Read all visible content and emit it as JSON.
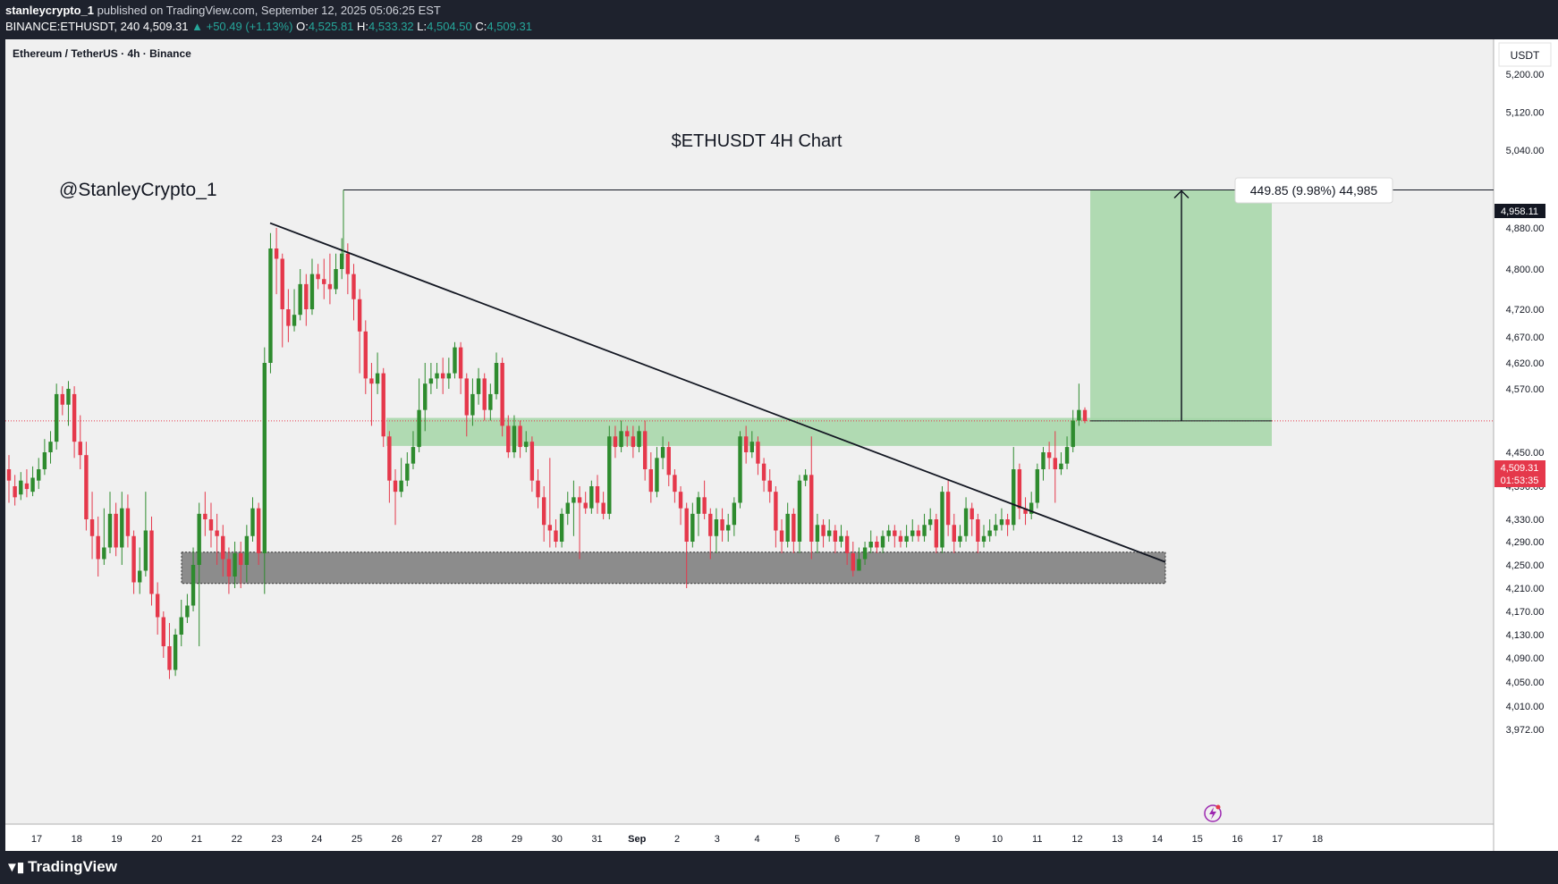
{
  "header": {
    "author": "stanleycrypto_1",
    "published": " published on TradingView.com, September 12, 2025 05:06:25 EST",
    "symbol": "BINANCE:ETHUSDT, 240",
    "price": "4,509.31",
    "change": "▲ +50.49 (+1.13%)",
    "o_label": "O:",
    "o_val": "4,525.81",
    "h_label": "H:",
    "h_val": "4,533.32",
    "l_label": "L:",
    "l_val": "4,504.50",
    "c_label": "C:",
    "c_val": "4,509.31"
  },
  "footer": {
    "brand": "TradingView"
  },
  "colors": {
    "up": "#2e8b2e",
    "down": "#e5384b",
    "zone": "#a5d6a7",
    "support": "#8c8c8c",
    "bg": "#f0f0f0"
  },
  "chart_data": {
    "type": "candlestick",
    "pair_label": "Ethereum / TetherUS · 4h · Binance",
    "title": "$ETHUSDT 4H Chart",
    "watermark": "@StanleyCrypto_1",
    "currency": "USDT",
    "ylim": [
      3945,
      5260
    ],
    "y_ticks": [
      "5,200.00",
      "5,120.00",
      "5,040.00",
      "4,880.00",
      "4,800.00",
      "4,720.00",
      "4,670.00",
      "4,620.00",
      "4,570.00",
      "4,450.00",
      "4,390.00",
      "4,330.00",
      "4,290.00",
      "4,250.00",
      "4,210.00",
      "4,170.00",
      "4,130.00",
      "4,090.00",
      "4,050.00",
      "4,010.00",
      "3,972.00"
    ],
    "x_ticks": [
      "17",
      "18",
      "19",
      "20",
      "21",
      "22",
      "23",
      "24",
      "25",
      "26",
      "27",
      "28",
      "29",
      "30",
      "31",
      "Sep",
      "2",
      "3",
      "4",
      "5",
      "6",
      "7",
      "8",
      "9",
      "10",
      "11",
      "12",
      "13",
      "14",
      "15",
      "16",
      "17",
      "18"
    ],
    "current_price": "4,509.31",
    "countdown": "01:53:35",
    "target_price": "4,958.11",
    "measure_label": "449.85 (9.98%) 44,985",
    "candles": [
      [
        4420,
        4400,
        4445,
        4360
      ],
      [
        4390,
        4370,
        4410,
        4355
      ],
      [
        4375,
        4400,
        4415,
        4365
      ],
      [
        4395,
        4385,
        4420,
        4370
      ],
      [
        4380,
        4405,
        4425,
        4372
      ],
      [
        4400,
        4420,
        4440,
        4385
      ],
      [
        4420,
        4450,
        4475,
        4410
      ],
      [
        4450,
        4470,
        4490,
        4430
      ],
      [
        4470,
        4560,
        4580,
        4455
      ],
      [
        4560,
        4540,
        4575,
        4520
      ],
      [
        4540,
        4570,
        4585,
        4500
      ],
      [
        4560,
        4470,
        4575,
        4440
      ],
      [
        4470,
        4445,
        4520,
        4420
      ],
      [
        4445,
        4330,
        4470,
        4310
      ],
      [
        4330,
        4300,
        4380,
        4260
      ],
      [
        4300,
        4260,
        4335,
        4230
      ],
      [
        4260,
        4280,
        4350,
        4250
      ],
      [
        4280,
        4340,
        4380,
        4270
      ],
      [
        4340,
        4280,
        4360,
        4265
      ],
      [
        4280,
        4350,
        4380,
        4250
      ],
      [
        4350,
        4300,
        4375,
        4280
      ],
      [
        4300,
        4220,
        4310,
        4200
      ],
      [
        4220,
        4240,
        4280,
        4200
      ],
      [
        4240,
        4310,
        4380,
        4230
      ],
      [
        4310,
        4200,
        4335,
        4180
      ],
      [
        4200,
        4160,
        4220,
        4130
      ],
      [
        4160,
        4110,
        4170,
        4090
      ],
      [
        4110,
        4070,
        4150,
        4055
      ],
      [
        4070,
        4130,
        4140,
        4060
      ],
      [
        4130,
        4160,
        4190,
        4110
      ],
      [
        4160,
        4180,
        4200,
        4150
      ],
      [
        4180,
        4250,
        4280,
        4170
      ],
      [
        4250,
        4340,
        4360,
        4110
      ],
      [
        4340,
        4330,
        4380,
        4300
      ],
      [
        4330,
        4310,
        4360,
        4280
      ],
      [
        4310,
        4300,
        4340,
        4250
      ],
      [
        4300,
        4260,
        4320,
        4230
      ],
      [
        4260,
        4230,
        4280,
        4200
      ],
      [
        4230,
        4270,
        4290,
        4210
      ],
      [
        4270,
        4250,
        4290,
        4210
      ],
      [
        4250,
        4300,
        4320,
        4220
      ],
      [
        4300,
        4350,
        4370,
        4290
      ],
      [
        4350,
        4270,
        4360,
        4250
      ],
      [
        4270,
        4620,
        4650,
        4200
      ],
      [
        4620,
        4840,
        4870,
        4600
      ],
      [
        4840,
        4820,
        4880,
        4750
      ],
      [
        4820,
        4720,
        4830,
        4650
      ],
      [
        4720,
        4690,
        4760,
        4660
      ],
      [
        4690,
        4710,
        4760,
        4680
      ],
      [
        4710,
        4770,
        4800,
        4700
      ],
      [
        4770,
        4720,
        4790,
        4690
      ],
      [
        4720,
        4790,
        4820,
        4710
      ],
      [
        4790,
        4780,
        4810,
        4760
      ],
      [
        4780,
        4770,
        4820,
        4740
      ],
      [
        4770,
        4760,
        4830,
        4730
      ],
      [
        4760,
        4800,
        4830,
        4750
      ],
      [
        4800,
        4830,
        4860,
        4780
      ],
      [
        4830,
        4790,
        4850,
        4750
      ],
      [
        4790,
        4740,
        4810,
        4700
      ],
      [
        4740,
        4680,
        4760,
        4600
      ],
      [
        4680,
        4590,
        4700,
        4560
      ],
      [
        4590,
        4580,
        4620,
        4500
      ],
      [
        4580,
        4600,
        4640,
        4560
      ],
      [
        4600,
        4480,
        4610,
        4460
      ],
      [
        4480,
        4400,
        4490,
        4360
      ],
      [
        4400,
        4380,
        4420,
        4320
      ],
      [
        4380,
        4400,
        4440,
        4370
      ],
      [
        4400,
        4430,
        4450,
        4390
      ],
      [
        4430,
        4460,
        4490,
        4420
      ],
      [
        4460,
        4530,
        4590,
        4450
      ],
      [
        4530,
        4580,
        4620,
        4490
      ],
      [
        4580,
        4590,
        4620,
        4560
      ],
      [
        4590,
        4600,
        4620,
        4570
      ],
      [
        4600,
        4590,
        4630,
        4560
      ],
      [
        4590,
        4600,
        4630,
        4570
      ],
      [
        4600,
        4650,
        4660,
        4590
      ],
      [
        4650,
        4590,
        4660,
        4560
      ],
      [
        4590,
        4520,
        4600,
        4480
      ],
      [
        4520,
        4560,
        4590,
        4500
      ],
      [
        4560,
        4590,
        4610,
        4540
      ],
      [
        4590,
        4530,
        4600,
        4510
      ],
      [
        4530,
        4560,
        4580,
        4510
      ],
      [
        4560,
        4620,
        4640,
        4550
      ],
      [
        4620,
        4500,
        4630,
        4480
      ],
      [
        4500,
        4450,
        4520,
        4440
      ],
      [
        4450,
        4500,
        4520,
        4440
      ],
      [
        4500,
        4460,
        4510,
        4440
      ],
      [
        4460,
        4470,
        4490,
        4450
      ],
      [
        4470,
        4400,
        4480,
        4380
      ],
      [
        4400,
        4370,
        4420,
        4350
      ],
      [
        4370,
        4320,
        4390,
        4290
      ],
      [
        4320,
        4310,
        4440,
        4280
      ],
      [
        4310,
        4290,
        4330,
        4280
      ],
      [
        4290,
        4340,
        4350,
        4280
      ],
      [
        4340,
        4360,
        4380,
        4320
      ],
      [
        4360,
        4370,
        4400,
        4300
      ],
      [
        4370,
        4360,
        4390,
        4260
      ],
      [
        4360,
        4350,
        4380,
        4340
      ],
      [
        4350,
        4390,
        4400,
        4340
      ],
      [
        4390,
        4360,
        4410,
        4340
      ],
      [
        4360,
        4340,
        4380,
        4330
      ],
      [
        4340,
        4480,
        4500,
        4330
      ],
      [
        4480,
        4460,
        4500,
        4440
      ],
      [
        4460,
        4490,
        4510,
        4450
      ],
      [
        4490,
        4480,
        4500,
        4460
      ],
      [
        4480,
        4460,
        4500,
        4440
      ],
      [
        4460,
        4490,
        4500,
        4450
      ],
      [
        4490,
        4420,
        4510,
        4400
      ],
      [
        4420,
        4380,
        4450,
        4360
      ],
      [
        4380,
        4440,
        4460,
        4370
      ],
      [
        4440,
        4460,
        4480,
        4420
      ],
      [
        4460,
        4410,
        4470,
        4390
      ],
      [
        4410,
        4380,
        4420,
        4360
      ],
      [
        4380,
        4350,
        4390,
        4320
      ],
      [
        4350,
        4290,
        4360,
        4210
      ],
      [
        4290,
        4340,
        4360,
        4280
      ],
      [
        4340,
        4370,
        4380,
        4300
      ],
      [
        4370,
        4340,
        4400,
        4330
      ],
      [
        4340,
        4300,
        4350,
        4260
      ],
      [
        4300,
        4330,
        4350,
        4270
      ],
      [
        4330,
        4310,
        4350,
        4290
      ],
      [
        4310,
        4320,
        4340,
        4290
      ],
      [
        4320,
        4360,
        4370,
        4300
      ],
      [
        4360,
        4480,
        4490,
        4350
      ],
      [
        4480,
        4450,
        4500,
        4430
      ],
      [
        4450,
        4470,
        4490,
        4440
      ],
      [
        4470,
        4430,
        4480,
        4410
      ],
      [
        4430,
        4400,
        4440,
        4380
      ],
      [
        4400,
        4380,
        4420,
        4360
      ],
      [
        4380,
        4310,
        4390,
        4280
      ],
      [
        4310,
        4290,
        4330,
        4270
      ],
      [
        4290,
        4340,
        4360,
        4280
      ],
      [
        4340,
        4290,
        4350,
        4270
      ],
      [
        4290,
        4400,
        4410,
        4270
      ],
      [
        4400,
        4410,
        4420,
        4390
      ],
      [
        4410,
        4290,
        4480,
        4260
      ],
      [
        4290,
        4320,
        4340,
        4270
      ],
      [
        4320,
        4300,
        4330,
        4280
      ],
      [
        4300,
        4310,
        4330,
        4290
      ],
      [
        4310,
        4290,
        4320,
        4270
      ],
      [
        4290,
        4300,
        4320,
        4280
      ],
      [
        4300,
        4270,
        4310,
        4250
      ],
      [
        4270,
        4240,
        4290,
        4230
      ],
      [
        4240,
        4260,
        4280,
        4240
      ],
      [
        4260,
        4280,
        4290,
        4250
      ],
      [
        4280,
        4290,
        4310,
        4270
      ],
      [
        4290,
        4280,
        4300,
        4270
      ],
      [
        4280,
        4300,
        4310,
        4270
      ],
      [
        4300,
        4310,
        4320,
        4290
      ],
      [
        4310,
        4300,
        4320,
        4280
      ],
      [
        4300,
        4290,
        4310,
        4280
      ],
      [
        4290,
        4300,
        4320,
        4280
      ],
      [
        4300,
        4310,
        4330,
        4290
      ],
      [
        4310,
        4300,
        4320,
        4290
      ],
      [
        4300,
        4320,
        4340,
        4290
      ],
      [
        4320,
        4330,
        4350,
        4310
      ],
      [
        4330,
        4280,
        4340,
        4270
      ],
      [
        4280,
        4380,
        4390,
        4270
      ],
      [
        4380,
        4320,
        4400,
        4300
      ],
      [
        4320,
        4290,
        4340,
        4270
      ],
      [
        4290,
        4300,
        4320,
        4280
      ],
      [
        4300,
        4350,
        4370,
        4290
      ],
      [
        4350,
        4330,
        4360,
        4300
      ],
      [
        4330,
        4290,
        4340,
        4270
      ],
      [
        4290,
        4300,
        4320,
        4280
      ],
      [
        4300,
        4310,
        4330,
        4290
      ],
      [
        4310,
        4320,
        4340,
        4300
      ],
      [
        4320,
        4330,
        4350,
        4310
      ],
      [
        4330,
        4320,
        4340,
        4300
      ],
      [
        4320,
        4420,
        4460,
        4310
      ],
      [
        4420,
        4350,
        4430,
        4330
      ],
      [
        4350,
        4340,
        4370,
        4320
      ],
      [
        4340,
        4360,
        4380,
        4330
      ],
      [
        4360,
        4420,
        4430,
        4350
      ],
      [
        4420,
        4450,
        4460,
        4400
      ],
      [
        4450,
        4440,
        4470,
        4420
      ],
      [
        4440,
        4420,
        4490,
        4360
      ],
      [
        4420,
        4430,
        4450,
        4410
      ],
      [
        4430,
        4460,
        4480,
        4420
      ],
      [
        4460,
        4510,
        4530,
        4450
      ],
      [
        4510,
        4530,
        4580,
        4500
      ],
      [
        4530,
        4509,
        4535,
        4505
      ]
    ]
  }
}
